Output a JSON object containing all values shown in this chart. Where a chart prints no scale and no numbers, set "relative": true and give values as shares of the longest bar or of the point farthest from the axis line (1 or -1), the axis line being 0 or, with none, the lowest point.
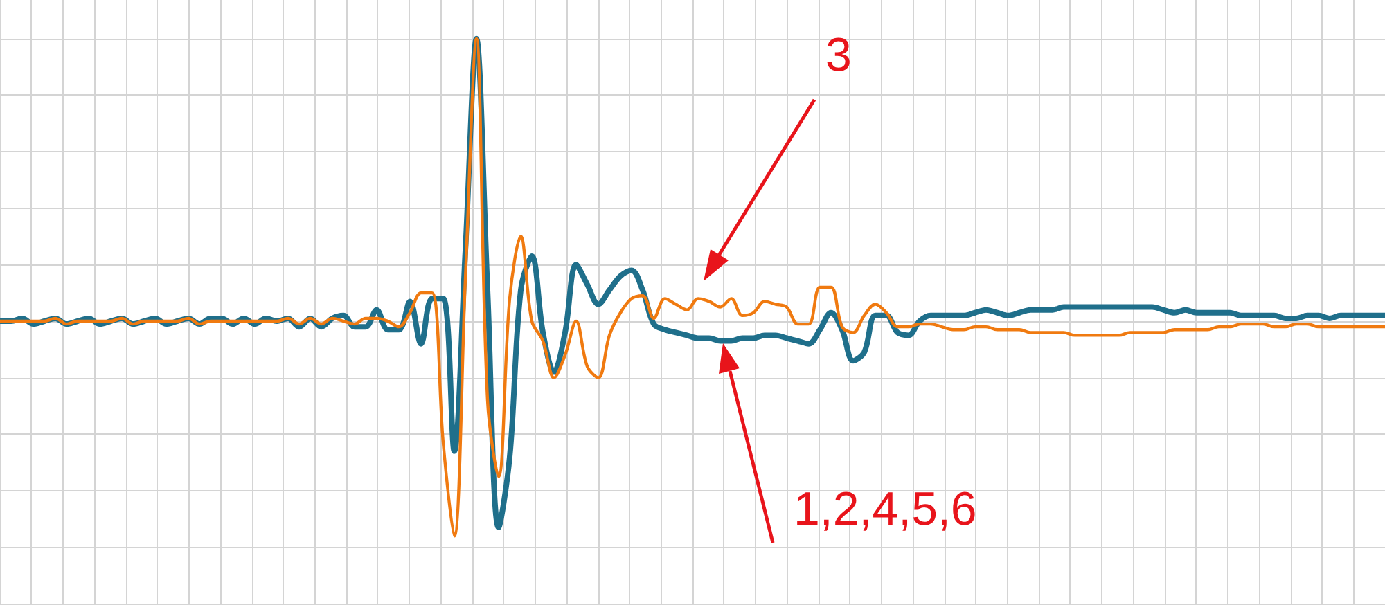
{
  "chart_data": {
    "type": "line",
    "relative": true,
    "grid": true,
    "marker": "none",
    "line_style": "solid",
    "categories": [
      null,
      null,
      null,
      null,
      null,
      null,
      null,
      null,
      null,
      null,
      null,
      null,
      null,
      null,
      null,
      null,
      null,
      null,
      null,
      null,
      null,
      null,
      null,
      null,
      null,
      null,
      null,
      null,
      null,
      null,
      null,
      null,
      null,
      null,
      null,
      null,
      null,
      null,
      null,
      null,
      null,
      null,
      null,
      null,
      null,
      null,
      null,
      null,
      null,
      null,
      null,
      null,
      null,
      null,
      null,
      null,
      null,
      null,
      null,
      null,
      null,
      null,
      null,
      null,
      null,
      null,
      null,
      null,
      null,
      null,
      null,
      null,
      null,
      null,
      null,
      null,
      null,
      null,
      null,
      null,
      null,
      null,
      null,
      null,
      null,
      null,
      null,
      null,
      null,
      null,
      null,
      null,
      null,
      null,
      null,
      null,
      null,
      null,
      null,
      null,
      null,
      null,
      null,
      null,
      null,
      null,
      null,
      null,
      null,
      null,
      null,
      null,
      null,
      null,
      null,
      null,
      null,
      null,
      null,
      null,
      null,
      null,
      null,
      null,
      null,
      null
    ],
    "series": [
      {
        "color": "#1f6f8b",
        "values": [
          0,
          0,
          0.01,
          -0.01,
          0,
          0.01,
          -0.01,
          0,
          0.01,
          -0.01,
          0,
          0.01,
          -0.01,
          0,
          0.01,
          -0.01,
          0,
          0.01,
          -0.01,
          0.01,
          0.01,
          -0.01,
          0.01,
          -0.01,
          0.01,
          0,
          0.01,
          -0.02,
          0.01,
          -0.02,
          0.01,
          0.02,
          -0.02,
          -0.02,
          0.04,
          -0.03,
          -0.03,
          0.07,
          -0.08,
          0.08,
          0.08,
          -0.46,
          0.25,
          1.0,
          0.11,
          -0.73,
          -0.48,
          0.11,
          0.23,
          -0.04,
          -0.18,
          -0.04,
          0.2,
          0.13,
          0.06,
          0.11,
          0.16,
          0.18,
          0.11,
          -0.01,
          -0.03,
          -0.04,
          -0.05,
          -0.06,
          -0.06,
          -0.07,
          -0.07,
          -0.06,
          -0.06,
          -0.05,
          -0.05,
          -0.06,
          -0.07,
          -0.08,
          -0.03,
          0.03,
          -0.03,
          -0.14,
          -0.11,
          0.02,
          0.02,
          -0.04,
          -0.05,
          0,
          0.02,
          0.02,
          0.02,
          0.02,
          0.03,
          0.04,
          0.03,
          0.02,
          0.03,
          0.04,
          0.04,
          0.04,
          0.05,
          0.05,
          0.05,
          0.05,
          0.05,
          0.05,
          0.05,
          0.05,
          0.05,
          0.04,
          0.03,
          0.04,
          0.03,
          0.03,
          0.03,
          0.03,
          0.02,
          0.02,
          0.02,
          0.02,
          0.01,
          0.01,
          0.02,
          0.02,
          0.01,
          0.02,
          0.02,
          0.02,
          0.02,
          0.02
        ]
      },
      {
        "color": "#f07a10",
        "values": [
          0,
          0,
          0,
          0,
          0,
          0.01,
          -0.01,
          0,
          0,
          0,
          0,
          0.01,
          -0.01,
          0,
          0,
          0,
          0,
          0.01,
          -0.01,
          0,
          0,
          0,
          0,
          0,
          0,
          0,
          0.01,
          -0.01,
          0.01,
          -0.01,
          0.01,
          0,
          -0.01,
          0.01,
          0.01,
          0,
          -0.02,
          0.03,
          0.1,
          0.1,
          -0.43,
          -0.76,
          0.15,
          1.0,
          -0.28,
          -0.55,
          0.08,
          0.3,
          0,
          -0.07,
          -0.2,
          -0.12,
          0,
          -0.16,
          -0.2,
          -0.05,
          0.03,
          0.08,
          0.09,
          0.01,
          0.08,
          0.06,
          0.04,
          0.08,
          0.07,
          0.05,
          0.08,
          0.02,
          0.03,
          0.07,
          0.06,
          0.05,
          -0.01,
          -0.01,
          0.12,
          0.12,
          -0.02,
          -0.04,
          0.02,
          0.06,
          0.03,
          -0.02,
          -0.02,
          -0.01,
          -0.01,
          -0.02,
          -0.03,
          -0.03,
          -0.02,
          -0.02,
          -0.03,
          -0.03,
          -0.03,
          -0.04,
          -0.04,
          -0.04,
          -0.04,
          -0.05,
          -0.05,
          -0.05,
          -0.05,
          -0.05,
          -0.04,
          -0.04,
          -0.04,
          -0.04,
          -0.03,
          -0.03,
          -0.03,
          -0.03,
          -0.02,
          -0.02,
          -0.01,
          -0.01,
          -0.01,
          -0.02,
          -0.02,
          -0.01,
          -0.01,
          -0.02,
          -0.02,
          -0.02,
          -0.02,
          -0.02,
          -0.02,
          -0.02
        ]
      }
    ],
    "annotations": [
      "3",
      "1,2,4,5,6"
    ]
  }
}
